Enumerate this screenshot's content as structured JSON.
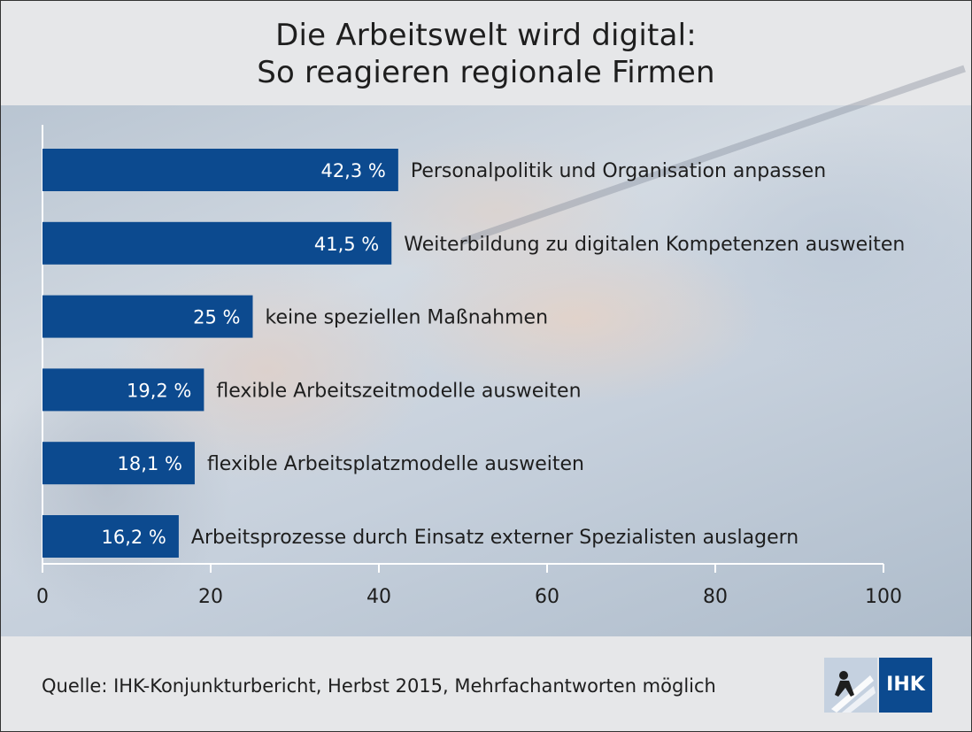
{
  "title_line1": "Die Arbeitswelt wird digital:",
  "title_line2": "So reagieren regionale Firmen",
  "source": "Quelle: IHK-Konjunkturbericht, Herbst 2015, Mehrfachantworten möglich",
  "logo_text": "IHK",
  "colors": {
    "bar": "#0c4a8f",
    "background": "#e6e7e9",
    "label_text": "#1e1e1e"
  },
  "chart_data": {
    "type": "bar",
    "orientation": "horizontal",
    "categories": [
      "Personalpolitik und Organisation anpassen",
      "Weiterbildung zu digitalen Kompetenzen ausweiten",
      "keine speziellen Maßnahmen",
      "flexible Arbeitszeitmodelle ausweiten",
      "flexible Arbeitsplatzmodelle ausweiten",
      "Arbeitsprozesse durch Einsatz externer Spezialisten auslagern"
    ],
    "values": [
      42.3,
      41.5,
      25,
      19.2,
      18.1,
      16.2
    ],
    "value_labels": [
      "42,3 %",
      "41,5 %",
      "25 %",
      "19,2 %",
      "18,1 %",
      "16,2 %"
    ],
    "xlim": [
      0,
      100
    ],
    "xticks": [
      0,
      20,
      40,
      60,
      80,
      100
    ],
    "xtick_labels": [
      "0",
      "20",
      "40",
      "60",
      "80",
      "100"
    ],
    "title": "Die Arbeitswelt wird digital: So reagieren regionale Firmen",
    "grid": false
  }
}
